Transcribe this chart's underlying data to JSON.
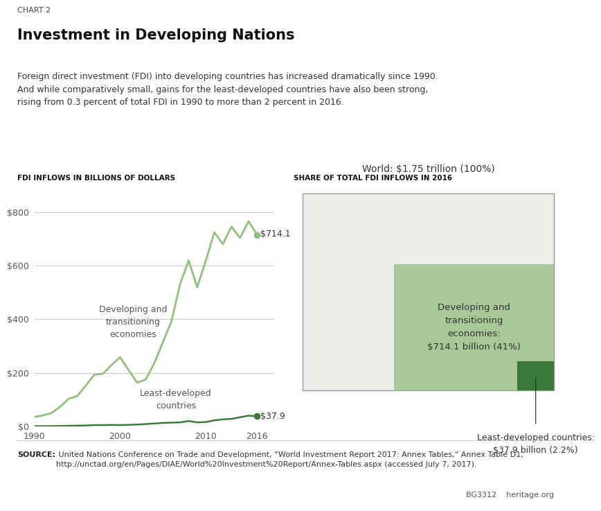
{
  "chart_label": "CHART 2",
  "title": "Investment in Developing Nations",
  "subtitle": "Foreign direct investment (FDI) into developing countries has increased dramatically since 1990.\nAnd while comparatively small, gains for the least-developed countries have also been strong,\nrising from 0.3 percent of total FDI in 1990 to more than 2 percent in 2016.",
  "left_chart_label": "FDI INFLOWS IN BILLIONS OF DOLLARS",
  "right_chart_label": "SHARE OF TOTAL FDI INFLOWS IN 2016",
  "years": [
    1990,
    1991,
    1992,
    1993,
    1994,
    1995,
    1996,
    1997,
    1998,
    1999,
    2000,
    2001,
    2002,
    2003,
    2004,
    2005,
    2006,
    2007,
    2008,
    2009,
    2010,
    2011,
    2012,
    2013,
    2014,
    2015,
    2016
  ],
  "developing": [
    35,
    41,
    50,
    73,
    103,
    113,
    152,
    193,
    196,
    229,
    258,
    210,
    163,
    175,
    236,
    314,
    392,
    530,
    619,
    519,
    617,
    724,
    680,
    745,
    703,
    765,
    714.1
  ],
  "least_developed": [
    0.6,
    0.8,
    1.2,
    1.5,
    2.3,
    2.8,
    3.2,
    5.0,
    4.8,
    5.5,
    4.9,
    5.8,
    6.9,
    8.7,
    10.8,
    13.0,
    14.0,
    15.0,
    20.0,
    15.0,
    16.0,
    22.5,
    26.0,
    28.0,
    34.0,
    40.0,
    37.9
  ],
  "developing_color": "#90c17a",
  "least_developed_color": "#3a7a3a",
  "world_box_color": "#ededea",
  "developing_box_color": "#a8c898",
  "least_developed_box_color": "#3a7a3a",
  "world_total": 1750,
  "developing_total": 714.1,
  "developing_pct": 41,
  "least_developed_total": 37.9,
  "least_developed_pct": 2.2,
  "world_label": "World: $1.75 trillion (100%)",
  "developing_box_label": "Developing and\ntransitioning\neconomies:\n$714.1 billion (41%)",
  "least_developed_box_label": "Least-developed countries:\n$37.9 billion (2.2%)",
  "line_label_developing": "Developing and\ntransitioning\neconomies",
  "line_label_least": "Least-developed\ncountries",
  "end_label_developing": "$714.1",
  "end_label_least": "$37.9",
  "ylim": [
    0,
    850
  ],
  "yticks": [
    0,
    200,
    400,
    600,
    800
  ],
  "source_bold": "SOURCE:",
  "source_text": " United Nations Conference on Trade and Development, “World Investment Report 2017: Annex Tables,” Annex Table D1,\nhttp://unctad.org/en/Pages/DIAE/World%20Investment%20Report/Annex-Tables.aspx (accessed July 7, 2017).",
  "bg_color": "#ffffff",
  "footnote_right": "BG3312    heritage.org"
}
